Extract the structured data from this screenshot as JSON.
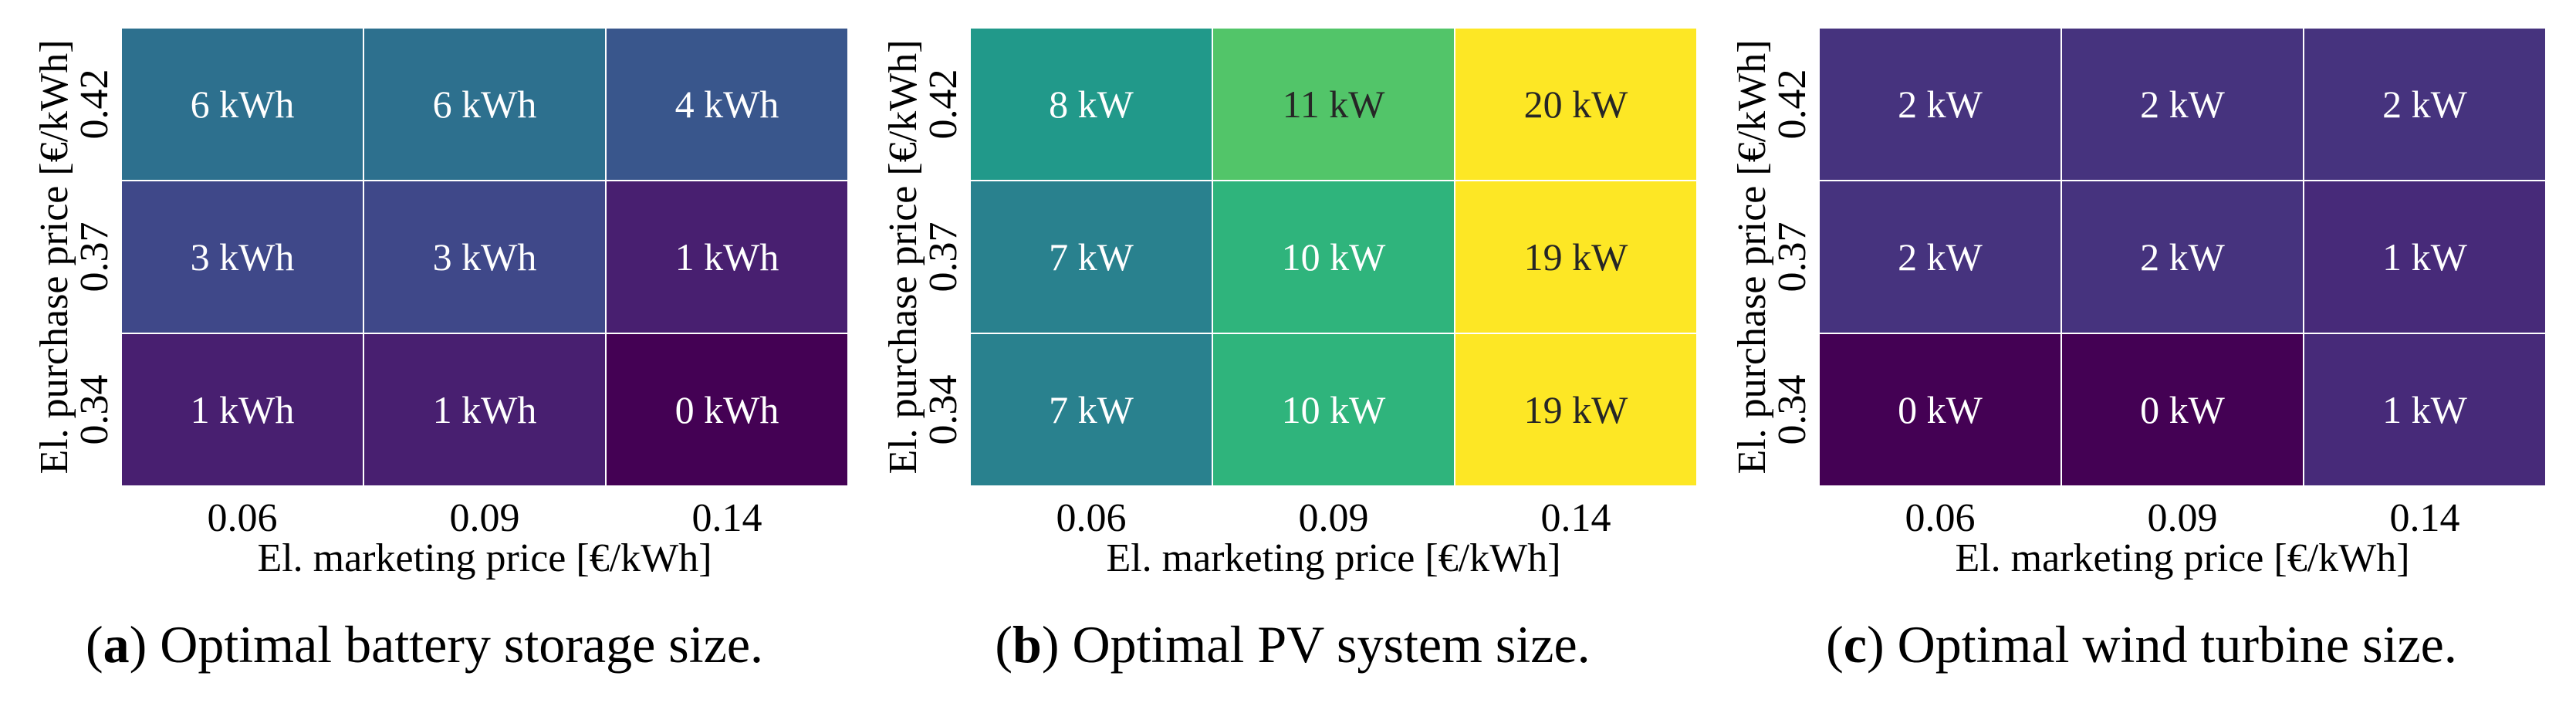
{
  "chart_data": [
    {
      "type": "heatmap",
      "id": "a",
      "caption_letter": "a",
      "caption_text": "Optimal battery storage size.",
      "xlabel": "El. marketing price [€/kWh]",
      "ylabel": "El. purchase price [€/kWh]",
      "x_categories": [
        "0.06",
        "0.09",
        "0.14"
      ],
      "y_categories": [
        "0.42",
        "0.37",
        "0.34"
      ],
      "values": [
        [
          6,
          6,
          4
        ],
        [
          3,
          3,
          1
        ],
        [
          1,
          1,
          0
        ]
      ],
      "unit": "kWh",
      "labels": [
        [
          "6 kWh",
          "6 kWh",
          "4 kWh"
        ],
        [
          "3 kWh",
          "3 kWh",
          "1 kWh"
        ],
        [
          "1 kWh",
          "1 kWh",
          "0 kWh"
        ]
      ],
      "colors": [
        [
          "#2d708e",
          "#2d708e",
          "#39568c"
        ],
        [
          "#3f4889",
          "#3f4889",
          "#481f70"
        ],
        [
          "#481f70",
          "#481f70",
          "#440154"
        ]
      ],
      "text_colors": [
        [
          "#ffffff",
          "#ffffff",
          "#ffffff"
        ],
        [
          "#ffffff",
          "#ffffff",
          "#ffffff"
        ],
        [
          "#ffffff",
          "#ffffff",
          "#ffffff"
        ]
      ]
    },
    {
      "type": "heatmap",
      "id": "b",
      "caption_letter": "b",
      "caption_text": "Optimal PV system size.",
      "xlabel": "El. marketing price [€/kWh]",
      "ylabel": "El. purchase price [€/kWh]",
      "x_categories": [
        "0.06",
        "0.09",
        "0.14"
      ],
      "y_categories": [
        "0.42",
        "0.37",
        "0.34"
      ],
      "values": [
        [
          8,
          11,
          20
        ],
        [
          7,
          10,
          19
        ],
        [
          7,
          10,
          19
        ]
      ],
      "unit": "kW",
      "labels": [
        [
          "8 kW",
          "11 kW",
          "20 kW"
        ],
        [
          "7 kW",
          "10 kW",
          "19 kW"
        ],
        [
          "7 kW",
          "10 kW",
          "19 kW"
        ]
      ],
      "colors": [
        [
          "#21998a",
          "#52c569",
          "#fde725"
        ],
        [
          "#29818e",
          "#2fb47c",
          "#fde725"
        ],
        [
          "#29818e",
          "#2fb47c",
          "#fde725"
        ]
      ],
      "text_colors": [
        [
          "#ffffff",
          "#262626",
          "#262626"
        ],
        [
          "#ffffff",
          "#ffffff",
          "#262626"
        ],
        [
          "#ffffff",
          "#ffffff",
          "#262626"
        ]
      ]
    },
    {
      "type": "heatmap",
      "id": "c",
      "caption_letter": "c",
      "caption_text": "Optimal wind turbine size.",
      "xlabel": "El. marketing price [€/kWh]",
      "ylabel": "El. purchase price [€/kWh]",
      "x_categories": [
        "0.06",
        "0.09",
        "0.14"
      ],
      "y_categories": [
        "0.42",
        "0.37",
        "0.34"
      ],
      "values": [
        [
          2,
          2,
          2
        ],
        [
          2,
          2,
          1
        ],
        [
          0,
          0,
          1
        ]
      ],
      "unit": "kW",
      "labels": [
        [
          "2 kW",
          "2 kW",
          "2 kW"
        ],
        [
          "2 kW",
          "2 kW",
          "1 kW"
        ],
        [
          "0 kW",
          "0 kW",
          "1 kW"
        ]
      ],
      "colors": [
        [
          "#46337e",
          "#46337e",
          "#46337e"
        ],
        [
          "#46337e",
          "#46337e",
          "#472a79"
        ],
        [
          "#440154",
          "#440154",
          "#472a79"
        ]
      ],
      "text_colors": [
        [
          "#ffffff",
          "#ffffff",
          "#ffffff"
        ],
        [
          "#ffffff",
          "#ffffff",
          "#ffffff"
        ],
        [
          "#ffffff",
          "#ffffff",
          "#ffffff"
        ]
      ]
    }
  ]
}
